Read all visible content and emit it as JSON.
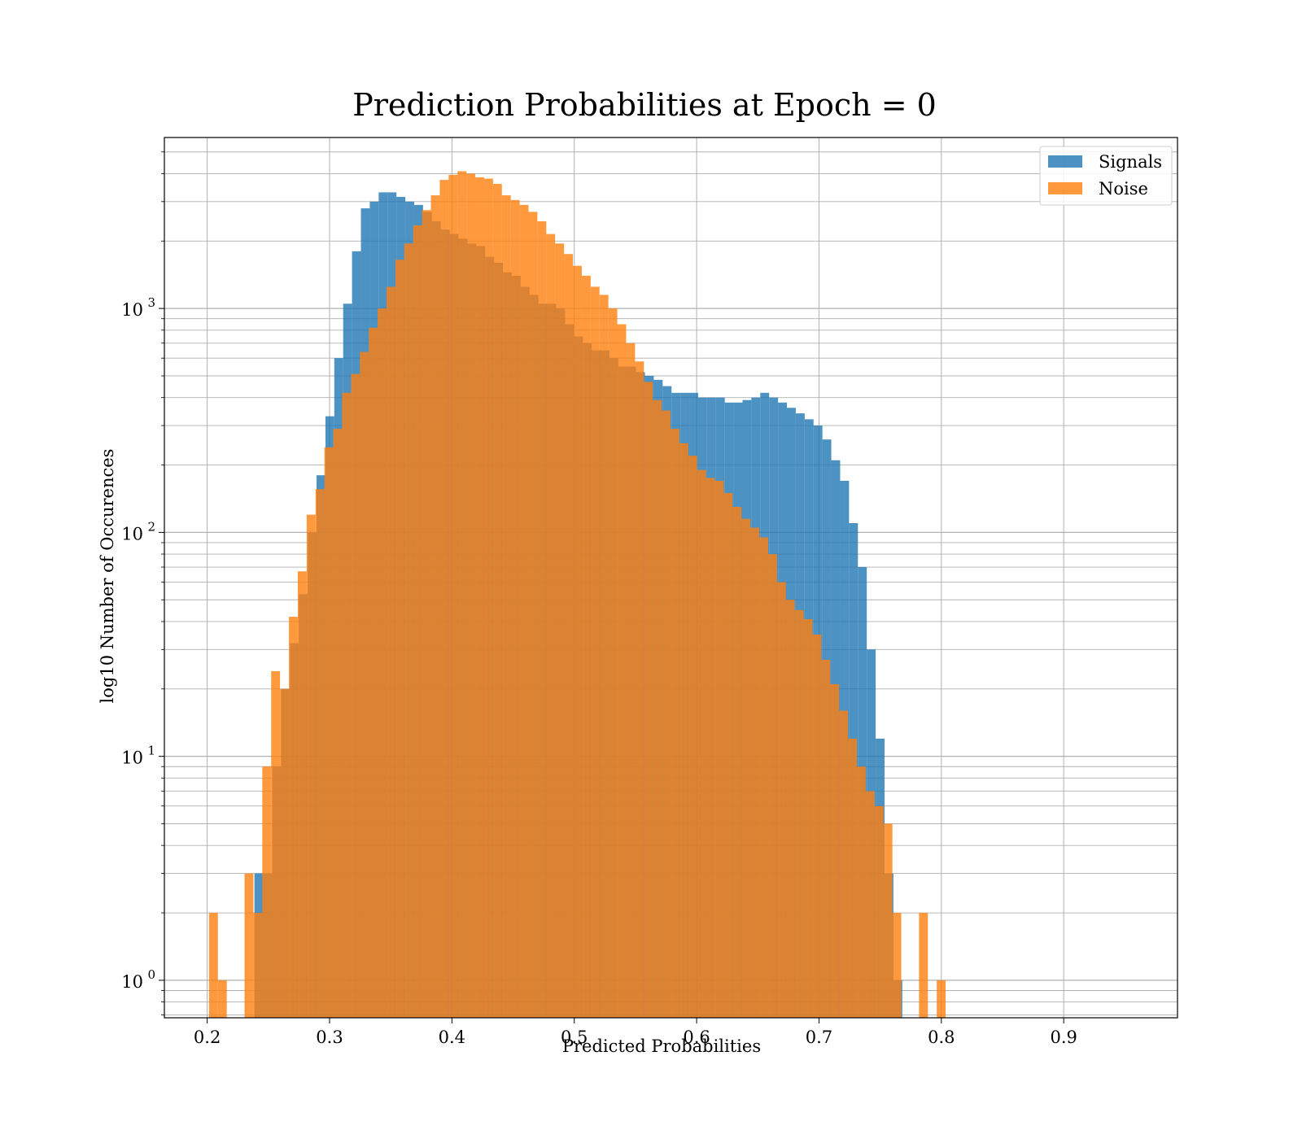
{
  "chart_data": {
    "type": "bar",
    "title": "Prediction Probabilities at Epoch = 0",
    "xlabel": "Predicted Probabilities",
    "ylabel": "log10 Number of Occurences",
    "y_scale": "log",
    "xlim": [
      0.165,
      0.993
    ],
    "ylim": [
      0.68,
      5800
    ],
    "grid": true,
    "legend_position": "top-right",
    "x_ticks": [
      0.2,
      0.3,
      0.4,
      0.5,
      0.6,
      0.7,
      0.8,
      0.9
    ],
    "x_tick_labels": [
      "0.2",
      "0.3",
      "0.4",
      "0.5",
      "0.6",
      "0.7",
      "0.8",
      "0.9"
    ],
    "y_ticks": [
      {
        "value": 1,
        "base": "10",
        "exp": "0"
      },
      {
        "value": 10,
        "base": "10",
        "exp": "1"
      },
      {
        "value": 100,
        "base": "10",
        "exp": "2"
      },
      {
        "value": 1000,
        "base": "10",
        "exp": "3"
      }
    ],
    "series": [
      {
        "name": "Signals",
        "color": "#1f77b4",
        "opacity": 0.8,
        "bin_start": 0.2386,
        "bin_width": 0.007253,
        "values": [
          3,
          3,
          9,
          20,
          32,
          53,
          100,
          180,
          330,
          600,
          1050,
          1800,
          2800,
          3000,
          3300,
          3300,
          3150,
          3000,
          2900,
          2700,
          2450,
          2250,
          2150,
          2050,
          1950,
          1900,
          1700,
          1600,
          1450,
          1400,
          1250,
          1150,
          1050,
          1050,
          1000,
          850,
          750,
          700,
          650,
          650,
          600,
          550,
          550,
          520,
          500,
          480,
          450,
          420,
          420,
          420,
          400,
          400,
          400,
          380,
          380,
          390,
          400,
          420,
          400,
          380,
          360,
          340,
          320,
          300,
          260,
          210,
          170,
          110,
          70,
          30,
          12,
          3,
          1
        ]
      },
      {
        "name": "Noise",
        "color": "#ff7f0e",
        "opacity": 0.8,
        "bin_start": 0.2015,
        "bin_width": 0.007253,
        "values": [
          2,
          1,
          0,
          0,
          3,
          2,
          9,
          24,
          20,
          42,
          67,
          120,
          156,
          240,
          290,
          420,
          510,
          640,
          820,
          1000,
          1250,
          1650,
          1950,
          2350,
          2750,
          3200,
          3750,
          3950,
          4100,
          4000,
          3850,
          3800,
          3600,
          3200,
          3050,
          2900,
          2700,
          2450,
          2150,
          1950,
          1750,
          1550,
          1400,
          1250,
          1150,
          1000,
          850,
          700,
          580,
          470,
          390,
          350,
          290,
          250,
          220,
          190,
          175,
          170,
          150,
          130,
          115,
          105,
          95,
          80,
          60,
          50,
          45,
          41,
          35,
          27,
          21,
          16,
          12,
          9,
          7,
          6,
          5,
          2,
          0,
          0,
          2,
          0,
          1,
          0
        ]
      }
    ]
  }
}
